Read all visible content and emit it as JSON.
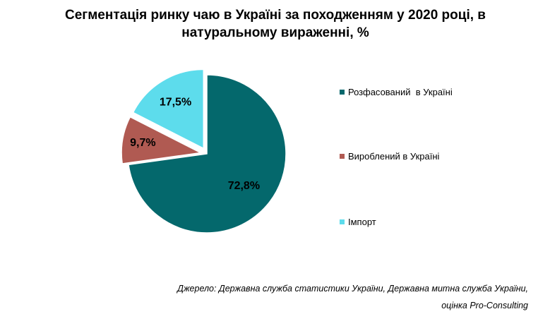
{
  "chart_data": {
    "type": "pie",
    "title_lines": [
      "Сегментація ринку чаю в Україні за походженням у 2020 році, в",
      "натуральному вираженні, %"
    ],
    "slices": [
      {
        "name": "Розфасований  в Україні",
        "value": 72.8,
        "label": "72,8%",
        "color": "#04686c"
      },
      {
        "name": "Вироблений в Україні",
        "value": 9.7,
        "label": "9,7%",
        "color": "#b05a52"
      },
      {
        "name": "Імпорт",
        "value": 17.5,
        "label": "17,5%",
        "color": "#5ddcec"
      }
    ],
    "legend_position": "right",
    "exploded": true
  },
  "source": {
    "line1": "Джерело: Державна служба статистики України, Державна митна служба України,",
    "line2": "оцінка Pro-Consulting"
  }
}
